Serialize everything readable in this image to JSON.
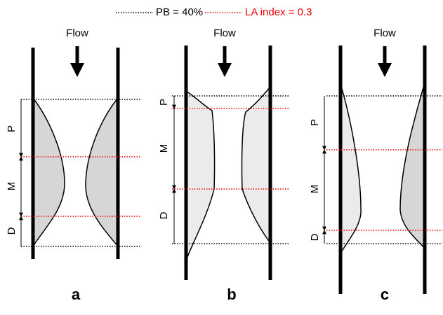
{
  "legend": {
    "items": [
      {
        "label": "PB = 40%"
      },
      {
        "label": "LA index = 0.3"
      }
    ]
  },
  "panels": [
    {
      "flow": "Flow",
      "segments": [
        "P",
        "M",
        "D"
      ],
      "label": "a"
    },
    {
      "flow": "Flow",
      "segments": [
        "P",
        "M",
        "D"
      ],
      "label": "b"
    },
    {
      "flow": "Flow",
      "segments": [
        "P",
        "M",
        "D"
      ],
      "label": "c"
    }
  ]
}
